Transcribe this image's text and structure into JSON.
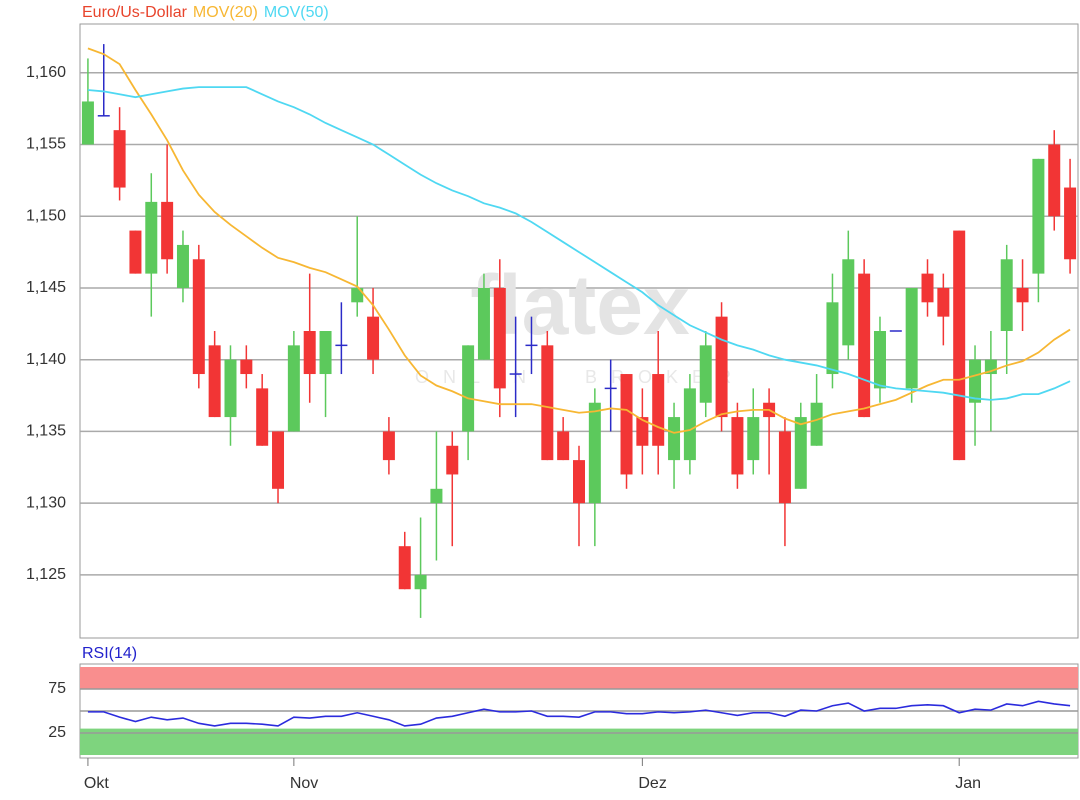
{
  "chart_data": [
    {
      "type": "candlestick",
      "title": "Euro/Us-Dollar",
      "title_color": "#e8442c",
      "open": [
        1.155,
        1.157,
        1.156,
        1.149,
        1.146,
        1.151,
        1.145,
        1.147,
        1.141,
        1.136,
        1.14,
        1.138,
        1.135,
        1.135,
        1.142,
        1.139,
        1.141,
        1.144,
        1.143,
        1.135,
        1.127,
        1.124,
        1.13,
        1.134,
        1.135,
        1.14,
        1.145,
        1.139,
        1.141,
        1.141,
        1.135,
        1.133,
        1.13,
        1.138,
        1.139,
        1.136,
        1.139,
        1.133,
        1.133,
        1.137,
        1.143,
        1.136,
        1.133,
        1.137,
        1.135,
        1.131,
        1.134,
        1.139,
        1.141,
        1.146,
        1.138,
        1.142,
        1.138,
        1.146,
        1.145,
        1.149,
        1.137,
        1.139,
        1.142,
        1.145,
        1.146,
        1.155,
        1.152
      ],
      "high": [
        1.161,
        1.162,
        1.1576,
        1.149,
        1.153,
        1.155,
        1.149,
        1.148,
        1.142,
        1.141,
        1.141,
        1.139,
        1.135,
        1.142,
        1.146,
        1.142,
        1.144,
        1.15,
        1.145,
        1.136,
        1.128,
        1.129,
        1.135,
        1.135,
        1.141,
        1.146,
        1.147,
        1.143,
        1.143,
        1.142,
        1.136,
        1.134,
        1.138,
        1.14,
        1.139,
        1.138,
        1.142,
        1.137,
        1.139,
        1.142,
        1.144,
        1.137,
        1.138,
        1.138,
        1.136,
        1.137,
        1.139,
        1.146,
        1.149,
        1.147,
        1.143,
        1.142,
        1.145,
        1.147,
        1.146,
        1.149,
        1.141,
        1.142,
        1.148,
        1.147,
        1.154,
        1.156,
        1.154
      ],
      "low": [
        1.155,
        1.157,
        1.1511,
        1.146,
        1.143,
        1.146,
        1.144,
        1.138,
        1.136,
        1.134,
        1.138,
        1.134,
        1.13,
        1.135,
        1.137,
        1.136,
        1.139,
        1.143,
        1.139,
        1.132,
        1.124,
        1.122,
        1.126,
        1.127,
        1.133,
        1.14,
        1.136,
        1.136,
        1.139,
        1.133,
        1.133,
        1.127,
        1.127,
        1.135,
        1.131,
        1.132,
        1.132,
        1.131,
        1.132,
        1.136,
        1.135,
        1.131,
        1.132,
        1.132,
        1.127,
        1.131,
        1.134,
        1.138,
        1.14,
        1.136,
        1.137,
        1.142,
        1.137,
        1.143,
        1.141,
        1.133,
        1.134,
        1.135,
        1.139,
        1.142,
        1.144,
        1.149,
        1.146
      ],
      "close": [
        1.158,
        1.157,
        1.152,
        1.146,
        1.151,
        1.147,
        1.148,
        1.139,
        1.136,
        1.14,
        1.139,
        1.134,
        1.131,
        1.141,
        1.139,
        1.142,
        1.141,
        1.145,
        1.14,
        1.133,
        1.124,
        1.125,
        1.131,
        1.132,
        1.141,
        1.145,
        1.138,
        1.139,
        1.141,
        1.133,
        1.133,
        1.13,
        1.137,
        1.138,
        1.132,
        1.134,
        1.134,
        1.136,
        1.138,
        1.141,
        1.136,
        1.132,
        1.136,
        1.136,
        1.13,
        1.136,
        1.137,
        1.144,
        1.147,
        1.136,
        1.142,
        1.142,
        1.145,
        1.144,
        1.143,
        1.133,
        1.14,
        1.14,
        1.147,
        1.144,
        1.154,
        1.15,
        1.147
      ],
      "colors": {
        "up": "#5cc95c",
        "down": "#f23535",
        "doji": "#2b2bc8"
      },
      "series": [
        {
          "name": "MOV(20)",
          "color": "#f7b733",
          "values": [
            1.1617,
            1.1613,
            1.1606,
            1.1588,
            1.1571,
            1.1553,
            1.1532,
            1.1515,
            1.1503,
            1.1494,
            1.1486,
            1.1478,
            1.1471,
            1.1468,
            1.1464,
            1.1461,
            1.1456,
            1.1451,
            1.1438,
            1.1421,
            1.1403,
            1.1389,
            1.1382,
            1.1378,
            1.1373,
            1.1371,
            1.1369,
            1.1369,
            1.1369,
            1.1367,
            1.1365,
            1.1363,
            1.1364,
            1.1366,
            1.1365,
            1.1358,
            1.1353,
            1.1349,
            1.1351,
            1.1357,
            1.1362,
            1.1364,
            1.1365,
            1.1365,
            1.1359,
            1.1355,
            1.1358,
            1.1362,
            1.1364,
            1.1366,
            1.1369,
            1.1372,
            1.1377,
            1.1382,
            1.1386,
            1.1386,
            1.1389,
            1.1392,
            1.1396,
            1.1399,
            1.1405,
            1.1414,
            1.1421
          ]
        },
        {
          "name": "MOV(50)",
          "color": "#4fd8f2",
          "values": [
            1.1588,
            1.1587,
            1.1585,
            1.1583,
            1.1585,
            1.1587,
            1.1589,
            1.159,
            1.159,
            1.159,
            1.159,
            1.1585,
            1.158,
            1.1576,
            1.1571,
            1.1565,
            1.156,
            1.1555,
            1.155,
            1.1543,
            1.1536,
            1.1529,
            1.1523,
            1.1518,
            1.1514,
            1.1509,
            1.1506,
            1.1502,
            1.1496,
            1.1489,
            1.1482,
            1.1475,
            1.1468,
            1.1461,
            1.1454,
            1.1447,
            1.1438,
            1.1431,
            1.1424,
            1.1419,
            1.1414,
            1.141,
            1.1407,
            1.1403,
            1.14,
            1.1398,
            1.1396,
            1.1393,
            1.139,
            1.1386,
            1.1382,
            1.138,
            1.1379,
            1.1378,
            1.1377,
            1.1375,
            1.1373,
            1.1372,
            1.1373,
            1.1376,
            1.1376,
            1.138,
            1.1385
          ]
        }
      ],
      "ylim": [
        1.1206,
        1.1634
      ],
      "yticks": [
        {
          "value": 1.125,
          "label": "1,125"
        },
        {
          "value": 1.13,
          "label": "1,130"
        },
        {
          "value": 1.135,
          "label": "1,135"
        },
        {
          "value": 1.14,
          "label": "1,140"
        },
        {
          "value": 1.145,
          "label": "1,145"
        },
        {
          "value": 1.15,
          "label": "1,150"
        },
        {
          "value": 1.155,
          "label": "1,155"
        },
        {
          "value": 1.16,
          "label": "1,160"
        }
      ],
      "grid": true,
      "watermark": "flatex",
      "watermark_subtitle": "ONLINE BROKER"
    },
    {
      "type": "line",
      "title": "RSI(14)",
      "title_color": "#2222cc",
      "color": "#2b2bdd",
      "categories": [
        "Okt",
        null,
        null,
        null,
        null,
        null,
        null,
        null,
        null,
        null,
        null,
        null,
        null,
        "Nov",
        null,
        null,
        null,
        null,
        null,
        null,
        null,
        null,
        null,
        null,
        null,
        null,
        null,
        null,
        null,
        null,
        null,
        null,
        null,
        null,
        null,
        "Dez",
        null,
        null,
        null,
        null,
        null,
        null,
        null,
        null,
        null,
        null,
        null,
        null,
        null,
        null,
        null,
        null,
        null,
        null,
        null,
        "Jan",
        null,
        null,
        null,
        null,
        null,
        null,
        null
      ],
      "values": [
        49,
        49,
        43,
        38,
        43,
        40,
        42,
        36,
        33,
        36,
        36,
        35,
        33,
        43,
        42,
        44,
        44,
        48,
        44,
        40,
        33,
        35,
        42,
        44,
        48,
        52,
        49,
        49,
        50,
        44,
        44,
        43,
        49,
        49,
        47,
        47,
        49,
        48,
        49,
        51,
        48,
        45,
        48,
        48,
        44,
        51,
        50,
        56,
        59,
        50,
        53,
        53,
        56,
        57,
        56,
        48,
        52,
        51,
        58,
        56,
        61,
        58,
        56
      ],
      "ylim": [
        -3.4,
        103.4
      ],
      "yticks": [
        25,
        75
      ],
      "midline": 50,
      "bands": [
        {
          "range": [
            75,
            100
          ],
          "color": "#f98e8e"
        },
        {
          "range": [
            0,
            30
          ],
          "color": "#7ed47e"
        }
      ]
    }
  ]
}
